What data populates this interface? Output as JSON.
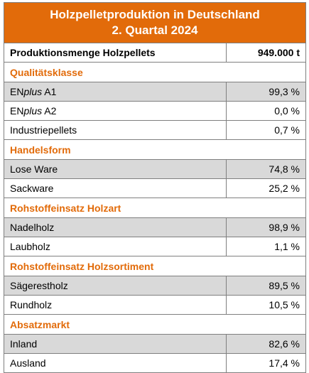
{
  "title": {
    "line1": "Holzpelletproduktion in Deutschland",
    "line2": "2. Quartal 2024"
  },
  "total": {
    "label": "Produktionsmenge Holzpellets",
    "value": "949.000 t"
  },
  "sections": [
    {
      "heading": "Qualitätsklasse",
      "rows": [
        {
          "prefix": "EN",
          "italic": "plus",
          "suffix": " A1",
          "value": "99,3 %",
          "shade": "grey"
        },
        {
          "prefix": "EN",
          "italic": "plus",
          "suffix": " A2",
          "value": "0,0 %",
          "shade": "white"
        },
        {
          "prefix": "Industriepellets",
          "italic": "",
          "suffix": "",
          "value": "0,7 %",
          "shade": "white"
        }
      ]
    },
    {
      "heading": "Handelsform",
      "rows": [
        {
          "prefix": "Lose Ware",
          "italic": "",
          "suffix": "",
          "value": "74,8 %",
          "shade": "grey"
        },
        {
          "prefix": "Sackware",
          "italic": "",
          "suffix": "",
          "value": "25,2 %",
          "shade": "white"
        }
      ]
    },
    {
      "heading": "Rohstoffeinsatz Holzart",
      "rows": [
        {
          "prefix": "Nadelholz",
          "italic": "",
          "suffix": "",
          "value": "98,9 %",
          "shade": "grey"
        },
        {
          "prefix": "Laubholz",
          "italic": "",
          "suffix": "",
          "value": "1,1 %",
          "shade": "white"
        }
      ]
    },
    {
      "heading": "Rohstoffeinsatz Holzsortiment",
      "rows": [
        {
          "prefix": "Sägerestholz",
          "italic": "",
          "suffix": "",
          "value": "89,5 %",
          "shade": "grey"
        },
        {
          "prefix": "Rundholz",
          "italic": "",
          "suffix": "",
          "value": "10,5 %",
          "shade": "white"
        }
      ]
    },
    {
      "heading": "Absatzmarkt",
      "rows": [
        {
          "prefix": "Inland",
          "italic": "",
          "suffix": "",
          "value": "82,6 %",
          "shade": "grey"
        },
        {
          "prefix": "Ausland",
          "italic": "",
          "suffix": "",
          "value": "17,4 %",
          "shade": "white"
        }
      ]
    }
  ],
  "colors": {
    "accent": "#e26b0a",
    "row_shade": "#d9d9d9",
    "border": "#7f7f7f"
  }
}
